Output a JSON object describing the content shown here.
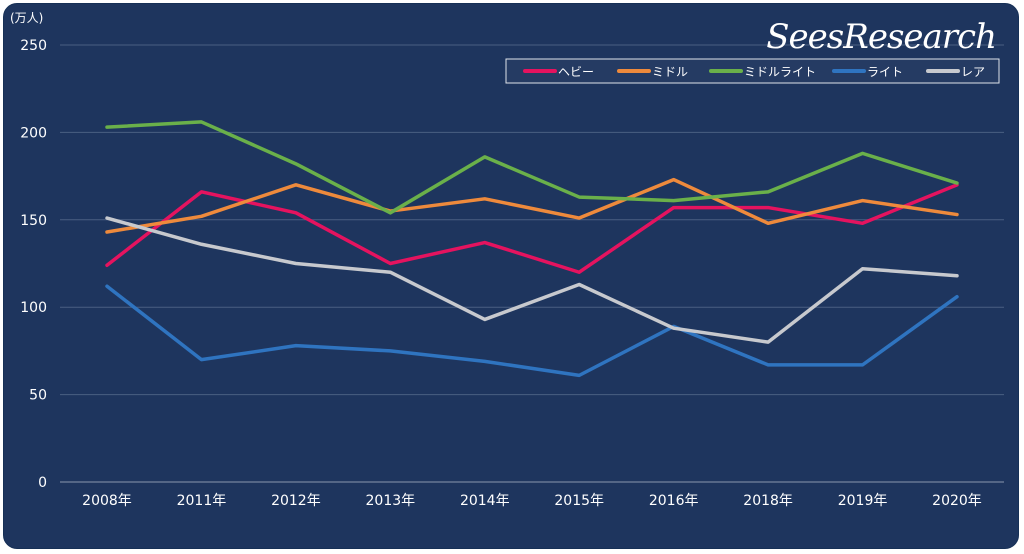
{
  "brand": "SeesResearch",
  "chart_data": {
    "type": "line",
    "title": "",
    "xlabel": "",
    "ylabel": "(万人)",
    "ylim": [
      0,
      250
    ],
    "yticks": [
      0,
      50,
      100,
      150,
      200,
      250
    ],
    "grid": true,
    "legend_position": "top-right",
    "categories": [
      "2008年",
      "2011年",
      "2012年",
      "2013年",
      "2014年",
      "2015年",
      "2016年",
      "2018年",
      "2019年",
      "2020年"
    ],
    "series": [
      {
        "name": "ヘビー",
        "color": "#e5135f",
        "values": [
          124,
          166,
          154,
          125,
          137,
          120,
          157,
          157,
          148,
          170
        ]
      },
      {
        "name": "ミドル",
        "color": "#ee8a3c",
        "values": [
          143,
          152,
          170,
          155,
          162,
          151,
          173,
          148,
          161,
          153
        ]
      },
      {
        "name": "ミドルライト",
        "color": "#6ab04a",
        "values": [
          203,
          206,
          182,
          154,
          186,
          163,
          161,
          166,
          188,
          171
        ]
      },
      {
        "name": "ライト",
        "color": "#2f74c0",
        "values": [
          112,
          70,
          78,
          75,
          69,
          61,
          89,
          67,
          67,
          106
        ]
      },
      {
        "name": "レア",
        "color": "#c7c9ce",
        "values": [
          151,
          136,
          125,
          120,
          93,
          113,
          88,
          80,
          122,
          118
        ]
      }
    ]
  }
}
